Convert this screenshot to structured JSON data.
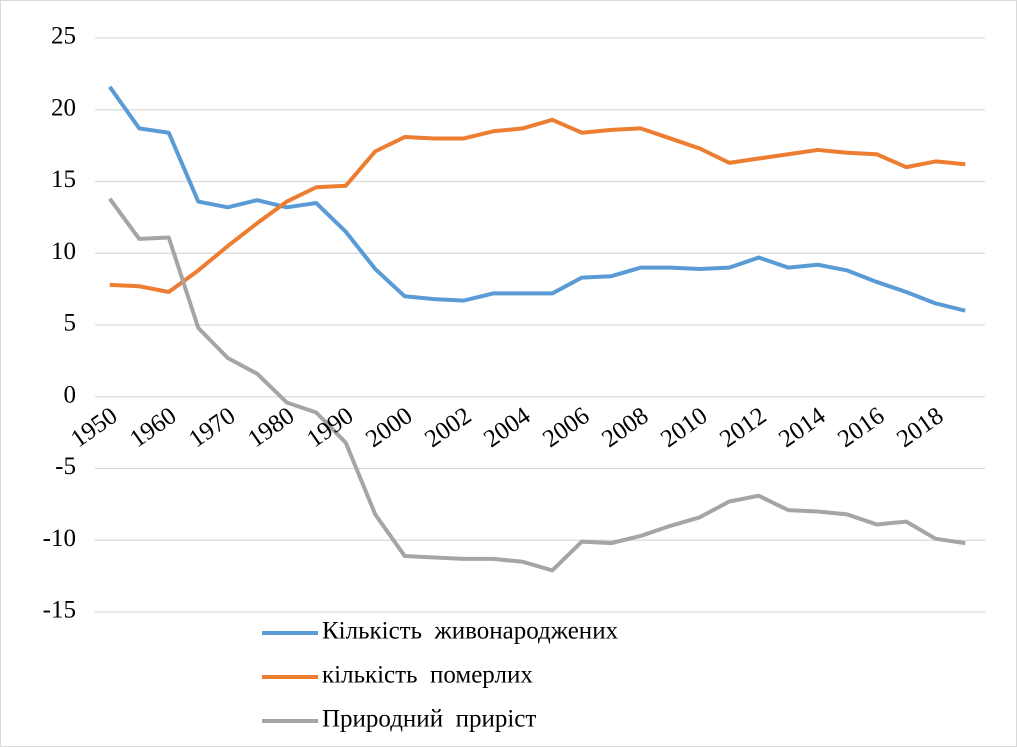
{
  "chart_data": {
    "type": "line",
    "categories": [
      "1950",
      null,
      "1960",
      null,
      "1970",
      null,
      "1980",
      null,
      "1990",
      null,
      "2000",
      null,
      "2002",
      null,
      "2004",
      null,
      "2006",
      null,
      "2008",
      null,
      "2010",
      null,
      "2012",
      null,
      "2014",
      null,
      "2016",
      null,
      "2018",
      null
    ],
    "series": [
      {
        "name": "Кількість  живонароджених",
        "color": "#5b9bd5",
        "values": [
          21.6,
          18.7,
          18.4,
          13.6,
          13.2,
          13.7,
          13.2,
          13.5,
          11.5,
          8.9,
          7.0,
          6.8,
          6.7,
          7.2,
          7.2,
          7.2,
          8.3,
          8.4,
          9.0,
          9.0,
          8.9,
          9.0,
          9.7,
          9.0,
          9.2,
          8.8,
          8.0,
          7.3,
          6.5,
          6.0
        ]
      },
      {
        "name": "кількість  померлих",
        "color": "#ed7d31",
        "values": [
          7.8,
          7.7,
          7.3,
          8.8,
          10.5,
          12.1,
          13.6,
          14.6,
          14.7,
          17.1,
          18.1,
          18.0,
          18.0,
          18.5,
          18.7,
          19.3,
          18.4,
          18.6,
          18.7,
          18.0,
          17.3,
          16.3,
          16.6,
          16.9,
          17.2,
          17.0,
          16.9,
          16.0,
          16.4,
          16.2
        ]
      },
      {
        "name": "Природний  приріст",
        "color": "#a5a5a5",
        "values": [
          13.8,
          11.0,
          11.1,
          4.8,
          2.7,
          1.6,
          -0.4,
          -1.1,
          -3.2,
          -8.2,
          -11.1,
          -11.2,
          -11.3,
          -11.3,
          -11.5,
          -12.1,
          -10.1,
          -10.2,
          -9.7,
          -9.0,
          -8.4,
          -7.3,
          -6.9,
          -7.9,
          -8.0,
          -8.2,
          -8.9,
          -8.7,
          -9.9,
          -10.2
        ]
      }
    ],
    "ylim": [
      -15,
      25
    ],
    "yticks": [
      -15,
      -10,
      -5,
      0,
      5,
      10,
      15,
      20,
      25
    ],
    "grid": true
  }
}
